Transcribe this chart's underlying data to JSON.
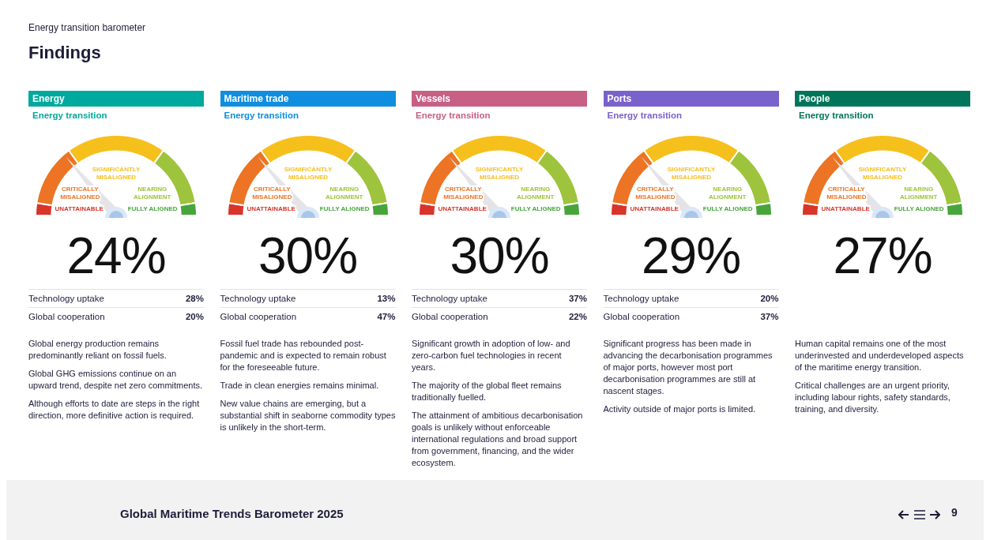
{
  "chart_data": [
    {
      "type": "other",
      "title": "Findings",
      "subtitle": "Energy transition barometer",
      "annotations": [
        "Global Maritime Trends Barometer 2025",
        "9"
      ]
    },
    {
      "type": "donut",
      "title": "Energy",
      "subtitle": "Energy transition",
      "categories": [
        "UNATTAINABLE",
        "CRITICALLY MISALIGNED",
        "SIGNIFICANTLY MISALIGNED",
        "NEARING ALIGNMENT",
        "FULLY ALIGNED"
      ],
      "values": [
        5,
        25,
        40,
        25,
        5
      ],
      "colors": [
        "#d9332a",
        "#ec7424",
        "#f6c01c",
        "#9dc43c",
        "#47a53b"
      ],
      "needle": "CRITICALLY MISALIGNED",
      "legend": false,
      "annotations": [
        "24%",
        "Technology uptake",
        "28%",
        "Global cooperation",
        "20%",
        "Global energy production remains predominantly reliant on fossil fuels.",
        "Global GHG emissions continue on an upward trend, despite net zero commitments.",
        "Although efforts to date are steps in the right direction, more definitive action is required."
      ]
    },
    {
      "type": "donut",
      "title": "Maritime trade",
      "subtitle": "Energy transition",
      "categories": [
        "UNATTAINABLE",
        "CRITICALLY MISALIGNED",
        "SIGNIFICANTLY MISALIGNED",
        "NEARING ALIGNMENT",
        "FULLY ALIGNED"
      ],
      "values": [
        5,
        25,
        40,
        25,
        5
      ],
      "colors": [
        "#d9332a",
        "#ec7424",
        "#f6c01c",
        "#9dc43c",
        "#47a53b"
      ],
      "needle": "CRITICALLY MISALIGNED",
      "legend": false,
      "annotations": [
        "30%",
        "Technology uptake",
        "13%",
        "Global cooperation",
        "47%",
        "Fossil fuel trade has rebounded post-pandemic and is expected to remain robust for the foreseeable future.",
        "Trade in clean energies remains minimal.",
        "New value chains are emerging, but a substantial shift in seaborne commodity types is unlikely in the short-term."
      ]
    },
    {
      "type": "donut",
      "title": "Vessels",
      "subtitle": "Energy transition",
      "categories": [
        "UNATTAINABLE",
        "CRITICALLY MISALIGNED",
        "SIGNIFICANTLY MISALIGNED",
        "NEARING ALIGNMENT",
        "FULLY ALIGNED"
      ],
      "values": [
        5,
        25,
        40,
        25,
        5
      ],
      "colors": [
        "#d9332a",
        "#ec7424",
        "#f6c01c",
        "#9dc43c",
        "#47a53b"
      ],
      "needle": "CRITICALLY MISALIGNED",
      "legend": false,
      "annotations": [
        "30%",
        "Technology uptake",
        "37%",
        "Global cooperation",
        "22%",
        "Significant growth in adoption of low- and zero-carbon fuel technologies in recent years.",
        "The majority of the global fleet remains traditionally fuelled.",
        "The attainment of ambitious decarbonisation goals is unlikely without enforceable international regulations and broad support from government, financing, and the wider ecosystem."
      ]
    },
    {
      "type": "donut",
      "title": "Ports",
      "subtitle": "Energy transition",
      "categories": [
        "UNATTAINABLE",
        "CRITICALLY MISALIGNED",
        "SIGNIFICANTLY MISALIGNED",
        "NEARING ALIGNMENT",
        "FULLY ALIGNED"
      ],
      "values": [
        5,
        25,
        40,
        25,
        5
      ],
      "colors": [
        "#d9332a",
        "#ec7424",
        "#f6c01c",
        "#9dc43c",
        "#47a53b"
      ],
      "needle": "CRITICALLY MISALIGNED",
      "legend": false,
      "annotations": [
        "29%",
        "Technology uptake",
        "20%",
        "Global cooperation",
        "37%",
        "Significant progress has been made in advancing the decarbonisation programmes of major ports, however most port decarbonisation programmes are still at nascent stages.",
        "Activity outside of major ports is limited."
      ]
    },
    {
      "type": "donut",
      "title": "People",
      "subtitle": "Energy transition",
      "categories": [
        "UNATTAINABLE",
        "CRITICALLY MISALIGNED",
        "SIGNIFICANTLY MISALIGNED",
        "NEARING ALIGNMENT",
        "FULLY ALIGNED"
      ],
      "values": [
        5,
        25,
        40,
        25,
        5
      ],
      "colors": [
        "#d9332a",
        "#ec7424",
        "#f6c01c",
        "#9dc43c",
        "#47a53b"
      ],
      "needle": "CRITICALLY MISALIGNED",
      "legend": false,
      "annotations": [
        "27%",
        "Human capital remains one of the most underinvested and underdeveloped aspects of the maritime energy transition.",
        "Critical challenges are an urgent priority, including labour rights, safety standards, training, and diversity."
      ]
    }
  ]
}
